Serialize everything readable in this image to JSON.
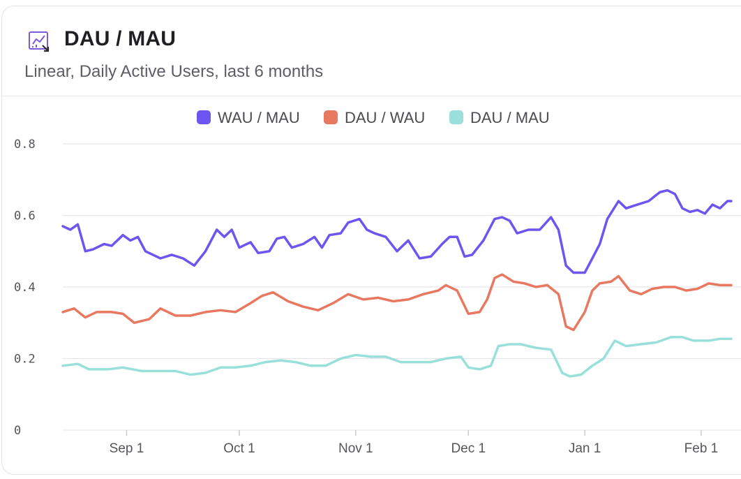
{
  "card": {
    "title": "DAU / MAU",
    "subtitle": "Linear, Daily Active Users, last 6 months",
    "icon": "line-chart-icon"
  },
  "colors": {
    "wau_mau": "#6c55f0",
    "dau_wau": "#e8785f",
    "dau_mau": "#98e0d9",
    "grid": "#e6e6ea",
    "icon": "#7d5bd6"
  },
  "chart_data": {
    "type": "line",
    "x_start": "2023-08-15",
    "x_end": "2024-02-09",
    "ylim": [
      0,
      0.8
    ],
    "y_ticks": [
      0,
      0.2,
      0.4,
      0.6,
      0.8
    ],
    "y_tick_labels": [
      "0",
      "0.2",
      "0.4",
      "0.6",
      "0.8"
    ],
    "x_ticks": [
      {
        "date": "2023-09-01",
        "label": "Sep 1"
      },
      {
        "date": "2023-10-01",
        "label": "Oct 1"
      },
      {
        "date": "2023-11-01",
        "label": "Nov 1"
      },
      {
        "date": "2023-12-01",
        "label": "Dec 1"
      },
      {
        "date": "2024-01-01",
        "label": "Jan 1"
      },
      {
        "date": "2024-02-01",
        "label": "Feb 1"
      }
    ],
    "grid": true,
    "legend": "top-center",
    "series": [
      {
        "name": "WAU / MAU",
        "color": "#6c55f0",
        "points": [
          [
            "2023-08-15",
            0.57
          ],
          [
            "2023-08-17",
            0.56
          ],
          [
            "2023-08-19",
            0.575
          ],
          [
            "2023-08-21",
            0.5
          ],
          [
            "2023-08-23",
            0.505
          ],
          [
            "2023-08-26",
            0.52
          ],
          [
            "2023-08-28",
            0.515
          ],
          [
            "2023-08-31",
            0.545
          ],
          [
            "2023-09-02",
            0.53
          ],
          [
            "2023-09-04",
            0.54
          ],
          [
            "2023-09-06",
            0.5
          ],
          [
            "2023-09-08",
            0.49
          ],
          [
            "2023-09-10",
            0.48
          ],
          [
            "2023-09-13",
            0.49
          ],
          [
            "2023-09-16",
            0.48
          ],
          [
            "2023-09-19",
            0.46
          ],
          [
            "2023-09-22",
            0.5
          ],
          [
            "2023-09-25",
            0.56
          ],
          [
            "2023-09-27",
            0.54
          ],
          [
            "2023-09-29",
            0.56
          ],
          [
            "2023-10-01",
            0.51
          ],
          [
            "2023-10-04",
            0.525
          ],
          [
            "2023-10-06",
            0.495
          ],
          [
            "2023-10-09",
            0.5
          ],
          [
            "2023-10-11",
            0.535
          ],
          [
            "2023-10-13",
            0.54
          ],
          [
            "2023-10-15",
            0.51
          ],
          [
            "2023-10-18",
            0.52
          ],
          [
            "2023-10-21",
            0.54
          ],
          [
            "2023-10-23",
            0.51
          ],
          [
            "2023-10-25",
            0.545
          ],
          [
            "2023-10-28",
            0.55
          ],
          [
            "2023-10-30",
            0.58
          ],
          [
            "2023-11-02",
            0.59
          ],
          [
            "2023-11-04",
            0.56
          ],
          [
            "2023-11-06",
            0.55
          ],
          [
            "2023-11-09",
            0.54
          ],
          [
            "2023-11-12",
            0.5
          ],
          [
            "2023-11-15",
            0.53
          ],
          [
            "2023-11-18",
            0.48
          ],
          [
            "2023-11-21",
            0.485
          ],
          [
            "2023-11-24",
            0.52
          ],
          [
            "2023-11-26",
            0.54
          ],
          [
            "2023-11-28",
            0.54
          ],
          [
            "2023-11-30",
            0.485
          ],
          [
            "2023-12-02",
            0.49
          ],
          [
            "2023-12-05",
            0.53
          ],
          [
            "2023-12-08",
            0.59
          ],
          [
            "2023-12-10",
            0.595
          ],
          [
            "2023-12-12",
            0.585
          ],
          [
            "2023-12-14",
            0.55
          ],
          [
            "2023-12-17",
            0.56
          ],
          [
            "2023-12-20",
            0.56
          ],
          [
            "2023-12-23",
            0.595
          ],
          [
            "2023-12-25",
            0.56
          ],
          [
            "2023-12-27",
            0.46
          ],
          [
            "2023-12-29",
            0.44
          ],
          [
            "2024-01-01",
            0.44
          ],
          [
            "2024-01-03",
            0.48
          ],
          [
            "2024-01-05",
            0.52
          ],
          [
            "2024-01-07",
            0.59
          ],
          [
            "2024-01-10",
            0.64
          ],
          [
            "2024-01-12",
            0.62
          ],
          [
            "2024-01-15",
            0.63
          ],
          [
            "2024-01-18",
            0.64
          ],
          [
            "2024-01-21",
            0.665
          ],
          [
            "2024-01-23",
            0.67
          ],
          [
            "2024-01-25",
            0.66
          ],
          [
            "2024-01-27",
            0.62
          ],
          [
            "2024-01-29",
            0.61
          ],
          [
            "2024-01-31",
            0.615
          ],
          [
            "2024-02-02",
            0.605
          ],
          [
            "2024-02-04",
            0.63
          ],
          [
            "2024-02-06",
            0.62
          ],
          [
            "2024-02-08",
            0.64
          ],
          [
            "2024-02-09",
            0.64
          ]
        ]
      },
      {
        "name": "DAU / WAU",
        "color": "#e8785f",
        "points": [
          [
            "2023-08-15",
            0.33
          ],
          [
            "2023-08-18",
            0.34
          ],
          [
            "2023-08-21",
            0.315
          ],
          [
            "2023-08-24",
            0.33
          ],
          [
            "2023-08-28",
            0.33
          ],
          [
            "2023-08-31",
            0.325
          ],
          [
            "2023-09-03",
            0.3
          ],
          [
            "2023-09-07",
            0.31
          ],
          [
            "2023-09-10",
            0.34
          ],
          [
            "2023-09-14",
            0.32
          ],
          [
            "2023-09-18",
            0.32
          ],
          [
            "2023-09-22",
            0.33
          ],
          [
            "2023-09-26",
            0.335
          ],
          [
            "2023-09-30",
            0.33
          ],
          [
            "2023-10-04",
            0.355
          ],
          [
            "2023-10-07",
            0.375
          ],
          [
            "2023-10-10",
            0.385
          ],
          [
            "2023-10-14",
            0.36
          ],
          [
            "2023-10-18",
            0.345
          ],
          [
            "2023-10-22",
            0.335
          ],
          [
            "2023-10-26",
            0.355
          ],
          [
            "2023-10-30",
            0.38
          ],
          [
            "2023-11-03",
            0.365
          ],
          [
            "2023-11-07",
            0.37
          ],
          [
            "2023-11-11",
            0.36
          ],
          [
            "2023-11-15",
            0.365
          ],
          [
            "2023-11-19",
            0.38
          ],
          [
            "2023-11-23",
            0.39
          ],
          [
            "2023-11-25",
            0.405
          ],
          [
            "2023-11-28",
            0.39
          ],
          [
            "2023-12-01",
            0.325
          ],
          [
            "2023-12-04",
            0.33
          ],
          [
            "2023-12-06",
            0.365
          ],
          [
            "2023-12-08",
            0.425
          ],
          [
            "2023-12-10",
            0.435
          ],
          [
            "2023-12-13",
            0.415
          ],
          [
            "2023-12-16",
            0.41
          ],
          [
            "2023-12-19",
            0.4
          ],
          [
            "2023-12-22",
            0.405
          ],
          [
            "2023-12-25",
            0.38
          ],
          [
            "2023-12-27",
            0.29
          ],
          [
            "2023-12-29",
            0.28
          ],
          [
            "2024-01-01",
            0.33
          ],
          [
            "2024-01-03",
            0.39
          ],
          [
            "2024-01-05",
            0.41
          ],
          [
            "2024-01-08",
            0.415
          ],
          [
            "2024-01-10",
            0.43
          ],
          [
            "2024-01-13",
            0.39
          ],
          [
            "2024-01-16",
            0.38
          ],
          [
            "2024-01-19",
            0.395
          ],
          [
            "2024-01-22",
            0.4
          ],
          [
            "2024-01-25",
            0.4
          ],
          [
            "2024-01-28",
            0.39
          ],
          [
            "2024-01-31",
            0.395
          ],
          [
            "2024-02-03",
            0.41
          ],
          [
            "2024-02-06",
            0.405
          ],
          [
            "2024-02-09",
            0.405
          ]
        ]
      },
      {
        "name": "DAU / MAU",
        "color": "#98e0d9",
        "points": [
          [
            "2023-08-15",
            0.18
          ],
          [
            "2023-08-19",
            0.185
          ],
          [
            "2023-08-22",
            0.17
          ],
          [
            "2023-08-27",
            0.17
          ],
          [
            "2023-08-31",
            0.175
          ],
          [
            "2023-09-05",
            0.165
          ],
          [
            "2023-09-10",
            0.165
          ],
          [
            "2023-09-14",
            0.165
          ],
          [
            "2023-09-18",
            0.155
          ],
          [
            "2023-09-22",
            0.16
          ],
          [
            "2023-09-26",
            0.175
          ],
          [
            "2023-09-30",
            0.175
          ],
          [
            "2023-10-04",
            0.18
          ],
          [
            "2023-10-08",
            0.19
          ],
          [
            "2023-10-12",
            0.195
          ],
          [
            "2023-10-16",
            0.19
          ],
          [
            "2023-10-20",
            0.18
          ],
          [
            "2023-10-24",
            0.18
          ],
          [
            "2023-10-28",
            0.2
          ],
          [
            "2023-11-01",
            0.21
          ],
          [
            "2023-11-05",
            0.205
          ],
          [
            "2023-11-09",
            0.205
          ],
          [
            "2023-11-13",
            0.19
          ],
          [
            "2023-11-17",
            0.19
          ],
          [
            "2023-11-21",
            0.19
          ],
          [
            "2023-11-25",
            0.2
          ],
          [
            "2023-11-29",
            0.205
          ],
          [
            "2023-12-01",
            0.175
          ],
          [
            "2023-12-04",
            0.17
          ],
          [
            "2023-12-07",
            0.18
          ],
          [
            "2023-12-09",
            0.235
          ],
          [
            "2023-12-12",
            0.24
          ],
          [
            "2023-12-15",
            0.24
          ],
          [
            "2023-12-19",
            0.23
          ],
          [
            "2023-12-23",
            0.225
          ],
          [
            "2023-12-26",
            0.16
          ],
          [
            "2023-12-28",
            0.15
          ],
          [
            "2023-12-31",
            0.155
          ],
          [
            "2024-01-03",
            0.18
          ],
          [
            "2024-01-06",
            0.2
          ],
          [
            "2024-01-09",
            0.25
          ],
          [
            "2024-01-12",
            0.235
          ],
          [
            "2024-01-16",
            0.24
          ],
          [
            "2024-01-20",
            0.245
          ],
          [
            "2024-01-24",
            0.26
          ],
          [
            "2024-01-27",
            0.26
          ],
          [
            "2024-01-30",
            0.25
          ],
          [
            "2024-02-03",
            0.25
          ],
          [
            "2024-02-06",
            0.255
          ],
          [
            "2024-02-09",
            0.255
          ]
        ]
      }
    ]
  }
}
